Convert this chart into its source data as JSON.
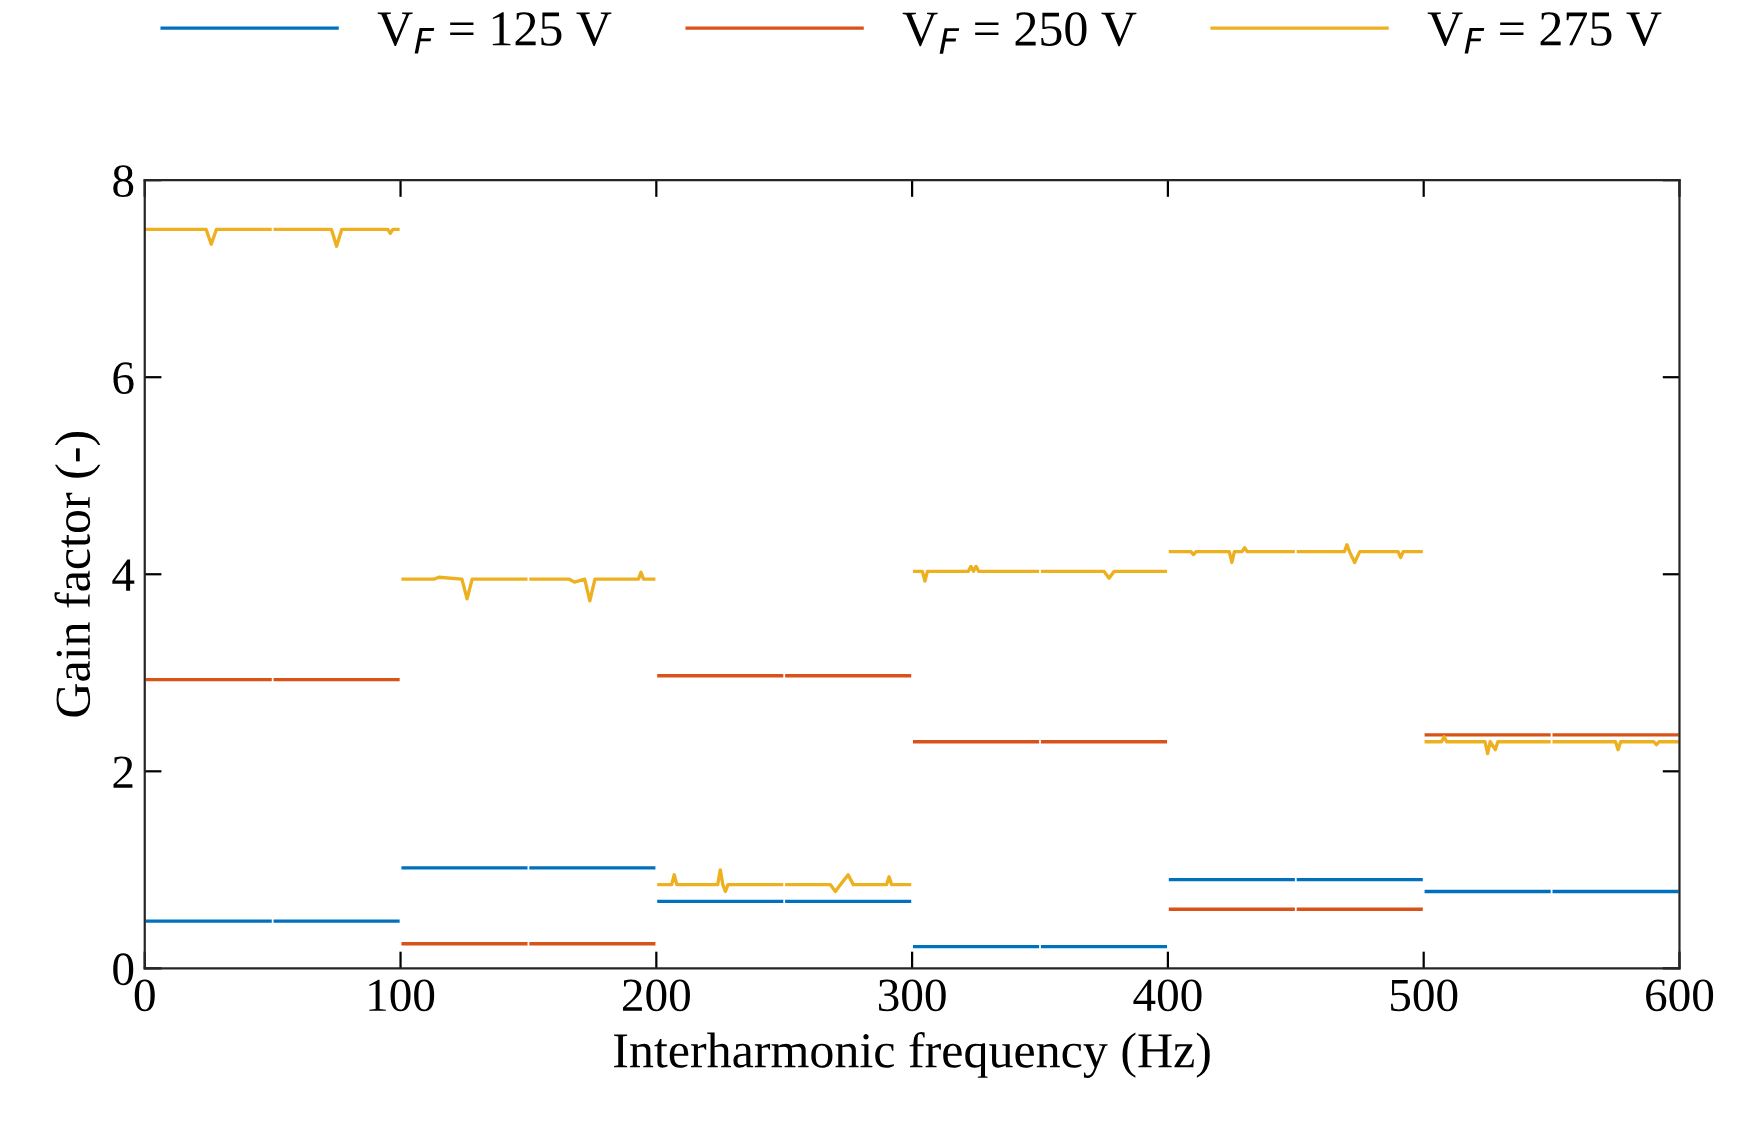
{
  "chart_data": {
    "type": "line",
    "xlabel": "Interharmonic frequency (Hz)",
    "ylabel": "Gain factor (-)",
    "xlim": [
      0,
      600
    ],
    "ylim": [
      0,
      8
    ],
    "xticks": [
      0,
      100,
      200,
      300,
      400,
      500,
      600
    ],
    "yticks": [
      0,
      2,
      4,
      6,
      8
    ],
    "grid": false,
    "legend": "top",
    "marker": "none",
    "line_style": "solid",
    "series": [
      {
        "name": "V$_{F}$ = 125 V",
        "color": "#0072bd",
        "x": [
          1,
          49,
          50,
          51,
          99,
          100,
          101,
          149,
          150,
          151,
          199,
          200,
          201,
          249,
          250,
          251,
          299,
          300,
          301,
          349,
          350,
          351,
          399,
          400,
          401,
          449,
          450,
          451,
          499,
          500,
          501,
          549,
          550,
          551,
          599
        ],
        "values": [
          0.48,
          0.48,
          null,
          0.48,
          0.48,
          null,
          1.02,
          1.02,
          null,
          1.02,
          1.02,
          null,
          0.68,
          0.68,
          null,
          0.68,
          0.68,
          null,
          0.22,
          0.22,
          null,
          0.22,
          0.22,
          null,
          0.9,
          0.9,
          null,
          0.9,
          0.9,
          null,
          0.78,
          0.78,
          null,
          0.78,
          0.78
        ]
      },
      {
        "name": "V$_{F}$ = 250 V",
        "color": "#d95319",
        "x": [
          1,
          49,
          50,
          51,
          99,
          100,
          101,
          149,
          150,
          151,
          199,
          200,
          201,
          249,
          250,
          251,
          299,
          300,
          301,
          349,
          350,
          351,
          399,
          400,
          401,
          449,
          450,
          451,
          499,
          500,
          501,
          549,
          550,
          551,
          599
        ],
        "values": [
          2.93,
          2.93,
          null,
          2.93,
          2.93,
          null,
          0.25,
          0.25,
          null,
          0.25,
          0.25,
          null,
          2.97,
          2.97,
          null,
          2.97,
          2.97,
          null,
          2.3,
          2.3,
          null,
          2.3,
          2.3,
          null,
          0.6,
          0.6,
          null,
          0.6,
          0.6,
          null,
          2.37,
          2.37,
          null,
          2.37,
          2.37
        ]
      },
      {
        "name": "V$_{F}$ = 275 V",
        "color": "#edb120",
        "x": [
          1,
          24,
          26,
          28,
          49,
          50,
          51,
          73,
          75,
          77,
          95,
          96,
          97,
          99,
          100,
          101,
          113,
          115,
          124,
          126,
          128,
          149,
          150,
          151,
          166,
          168,
          172,
          174,
          176,
          193,
          194,
          195,
          199,
          200,
          201,
          206,
          207,
          208,
          224,
          225,
          226,
          227,
          228,
          249,
          250,
          251,
          268,
          270,
          272,
          275,
          277,
          290,
          291,
          292,
          299,
          300,
          301,
          304,
          305,
          306,
          322,
          323,
          324,
          325,
          326,
          349,
          350,
          351,
          375,
          377,
          379,
          399,
          400,
          401,
          409,
          410,
          411,
          424,
          425,
          426,
          429,
          430,
          431,
          449,
          450,
          451,
          469,
          470,
          471,
          473,
          475,
          490,
          491,
          492,
          499,
          500,
          501,
          507,
          508,
          509,
          524,
          525,
          526,
          528,
          529,
          549,
          550,
          551,
          575,
          576,
          577,
          590,
          591,
          592,
          599
        ],
        "values": [
          7.5,
          7.5,
          7.35,
          7.5,
          7.5,
          null,
          7.5,
          7.5,
          7.33,
          7.5,
          7.5,
          7.46,
          7.5,
          7.5,
          null,
          3.95,
          3.95,
          3.97,
          3.95,
          3.75,
          3.95,
          3.95,
          null,
          3.95,
          3.95,
          3.92,
          3.95,
          3.73,
          3.95,
          3.95,
          4.02,
          3.95,
          3.95,
          null,
          0.85,
          0.85,
          0.95,
          0.85,
          0.85,
          1.0,
          0.85,
          0.78,
          0.85,
          0.85,
          null,
          0.85,
          0.85,
          0.78,
          0.85,
          0.95,
          0.85,
          0.85,
          0.93,
          0.85,
          0.85,
          null,
          4.03,
          4.03,
          3.93,
          4.03,
          4.03,
          4.08,
          4.03,
          4.08,
          4.03,
          4.03,
          null,
          4.03,
          4.03,
          3.96,
          4.03,
          4.03,
          null,
          4.23,
          4.23,
          4.2,
          4.23,
          4.23,
          4.12,
          4.23,
          4.23,
          4.27,
          4.23,
          4.23,
          null,
          4.23,
          4.23,
          4.3,
          4.23,
          4.12,
          4.23,
          4.23,
          4.17,
          4.23,
          4.23,
          null,
          2.3,
          2.3,
          2.35,
          2.3,
          2.3,
          2.18,
          2.3,
          2.22,
          2.3,
          2.3,
          null,
          2.3,
          2.3,
          2.22,
          2.3,
          2.3,
          2.27,
          2.3,
          2.3
        ]
      }
    ]
  }
}
